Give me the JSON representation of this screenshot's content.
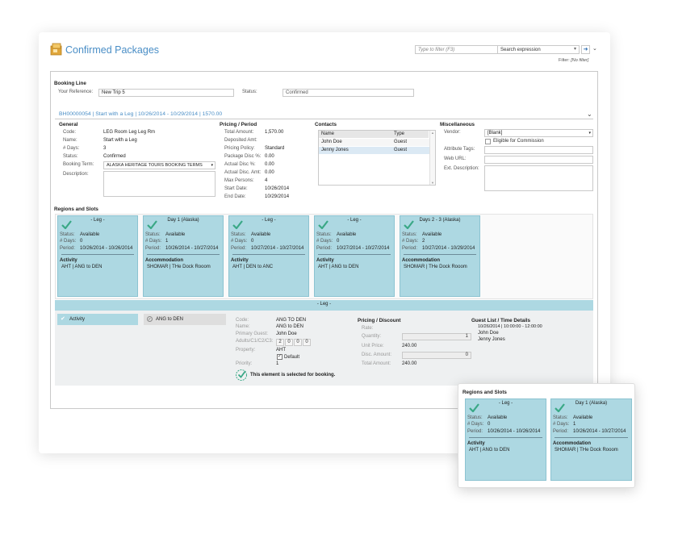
{
  "header": {
    "title": "Confirmed Packages",
    "filter_placeholder": "Type to filter (F3)",
    "search_value": "Search expression",
    "filter_label": "Filter:",
    "filter_value": "[No filter]"
  },
  "booking_line": {
    "heading": "Booking Line",
    "reference_label": "Your Reference:",
    "reference_value": "New Trip 5",
    "status_label": "Status:",
    "status_value": "Confirmed"
  },
  "booking_link": "BH00000054 | Start with a Leg | 10/26/2014 - 10/29/2014 | 1570.00",
  "general": {
    "heading": "General",
    "fields": [
      {
        "label": "Code:",
        "value": "LEG Room Leg Leg Rm"
      },
      {
        "label": "Name:",
        "value": "Start with a Leg"
      },
      {
        "label": "# Days:",
        "value": "3"
      },
      {
        "label": "Status:",
        "value": "Confirmed"
      },
      {
        "label": "Booking Term:",
        "value": "ALASKA HERITAGE TOURS BOOKING TERMS"
      },
      {
        "label": "Description:",
        "value": ""
      }
    ]
  },
  "pricing_period": {
    "heading": "Pricing / Period",
    "fields": [
      {
        "label": "Total Amount:",
        "value": "1,570.00"
      },
      {
        "label": "Deposited Amt:",
        "value": ""
      },
      {
        "label": "Pricing Policy:",
        "value": "Standard"
      },
      {
        "label": "Package Disc %:",
        "value": "0.00"
      },
      {
        "label": "Actual Disc %:",
        "value": "0.00"
      },
      {
        "label": "Actual Disc. Amt:",
        "value": "0.00"
      },
      {
        "label": "Max Persons:",
        "value": "4"
      },
      {
        "label": "Start Date:",
        "value": "10/26/2014"
      },
      {
        "label": "End Date:",
        "value": "10/29/2014"
      }
    ]
  },
  "contacts": {
    "heading": "Contacts",
    "columns": [
      "Name",
      "Type"
    ],
    "rows": [
      {
        "name": "John Doe",
        "type": "Guest"
      },
      {
        "name": "Jenny Jones",
        "type": "Guest"
      }
    ]
  },
  "misc": {
    "heading": "Miscellaneous",
    "vendor_label": "Vendor:",
    "vendor_value": "[Blank]",
    "commission_label": "Eligible for Commission",
    "attribute_tags_label": "Attribute Tags:",
    "web_url_label": "Web URL:",
    "ext_description_label": "Ext. Description:"
  },
  "regions": {
    "heading": "Regions and Slots",
    "labels": {
      "status": "Status:",
      "days": "# Days:",
      "period": "Period:"
    },
    "slots": [
      {
        "title": "- Leg -",
        "status": "Available",
        "days": "0",
        "period": "10/26/2014 - 10/26/2014",
        "section": "Activity",
        "detail": "AHT | ANG to DEN"
      },
      {
        "title": "Day 1 (Alaska)",
        "status": "Available",
        "days": "1",
        "period": "10/26/2014 - 10/27/2014",
        "section": "Accommodation",
        "detail": "SHOMAR | THe Dock Rooom"
      },
      {
        "title": "- Leg -",
        "status": "Available",
        "days": "0",
        "period": "10/27/2014 - 10/27/2014",
        "section": "Activity",
        "detail": "AHT | DEN to ANC"
      },
      {
        "title": "- Leg -",
        "status": "Available",
        "days": "0",
        "period": "10/27/2014 - 10/27/2014",
        "section": "Activity",
        "detail": "AHT | ANG to DEN"
      },
      {
        "title": "Days 2 - 3 (Alaska)",
        "status": "Available",
        "days": "2",
        "period": "10/27/2014 - 10/29/2014",
        "section": "Accommodation",
        "detail": "SHOMAR | THe Dock Rooom"
      }
    ]
  },
  "detail": {
    "bar_title": "- Leg -",
    "chip_activity": "Activity",
    "chip_route": "ANG to DEN",
    "fields": [
      {
        "label": "Code:",
        "value": "ANG TO DEN"
      },
      {
        "label": "Name:",
        "value": "ANG to DEN"
      },
      {
        "label": "Primary Guest:",
        "value": "John Doe"
      },
      {
        "label": "Adults/C1/C2/C3:",
        "value": ""
      },
      {
        "label": "Property:",
        "value": "AHT"
      },
      {
        "label": "",
        "value": ""
      },
      {
        "label": "Priority:",
        "value": "1"
      }
    ],
    "pax": [
      "2",
      "0",
      "0",
      "0"
    ],
    "default_label": "Default",
    "selected_text": "This element is selected for booking.",
    "pricing_heading": "Pricing / Discount",
    "pricing_fields": [
      {
        "label": "Rate:",
        "value": ""
      },
      {
        "label": "Quantity:",
        "value": "1"
      },
      {
        "label": "Unit Price:",
        "value": "240.00"
      },
      {
        "label": "Disc. Amount:",
        "value": "0"
      },
      {
        "label": "Total Amount:",
        "value": "240.00"
      }
    ],
    "guest_heading": "Guest List / Time Details",
    "guest_time": "10/26/2014 | 10:00:00 - 12:00:00",
    "guests": [
      "John Doe",
      "Jenny Jones"
    ]
  },
  "popup": {
    "heading": "Regions and Slots",
    "slots": [
      {
        "title": "- Leg -",
        "status": "Available",
        "days": "0",
        "period": "10/26/2014 - 10/26/2014",
        "section": "Activity",
        "detail": "AHT | ANG to DEN"
      },
      {
        "title": "Day 1 (Alaska)",
        "status": "Available",
        "days": "1",
        "period": "10/26/2014 - 10/27/2014",
        "section": "Accommodation",
        "detail": "SHOMAR | THe Dock Rooom"
      }
    ]
  },
  "colors": {
    "accent": "#4a8ec6",
    "slot_bg": "#add8e2",
    "check": "#3aa886"
  }
}
